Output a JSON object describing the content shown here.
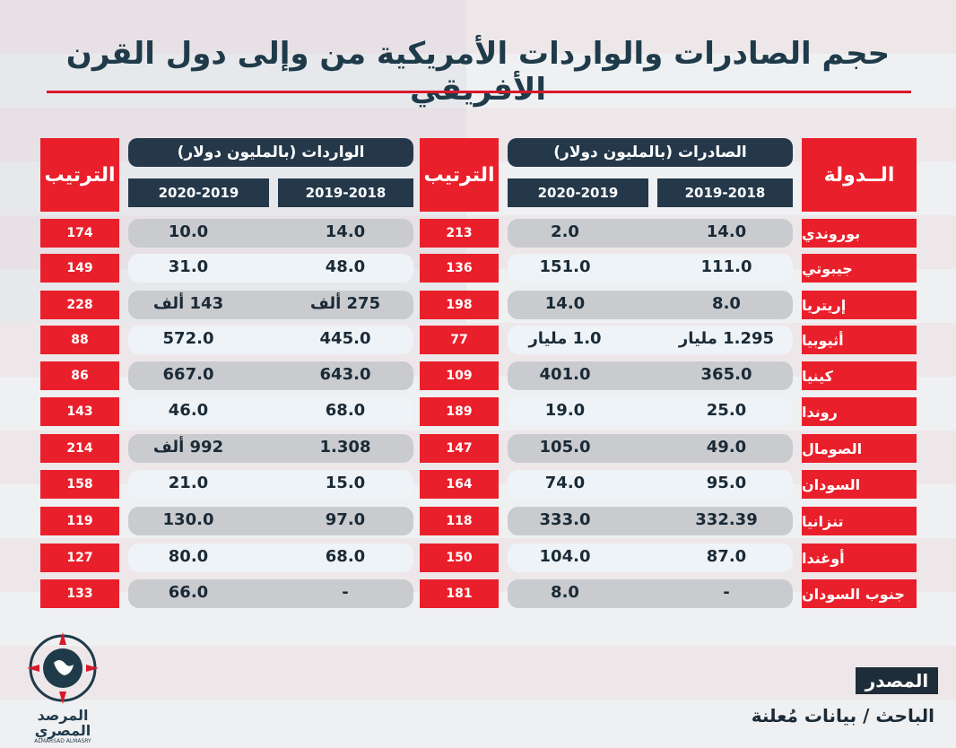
{
  "title": "حجم الصادرات والواردات الأمريكية من وإلى دول القرن الأفريقي",
  "headers": {
    "country": "الــدولة",
    "rank": "الترتيب",
    "exports": "الصادرات (بالمليون دولار)",
    "imports": "الواردات (بالمليون دولار)",
    "y1": "2019-2018",
    "y2": "2020-2019"
  },
  "rows": [
    {
      "country": "بوروندي",
      "exp1": "14.0",
      "exp2": "2.0",
      "exp_rank": "213",
      "imp1": "14.0",
      "imp2": "10.0",
      "imp_rank": "174"
    },
    {
      "country": "جيبوتي",
      "exp1": "111.0",
      "exp2": "151.0",
      "exp_rank": "136",
      "imp1": "48.0",
      "imp2": "31.0",
      "imp_rank": "149"
    },
    {
      "country": "إريتريا",
      "exp1": "8.0",
      "exp2": "14.0",
      "exp_rank": "198",
      "imp1": "275 ألف",
      "imp2": "143 ألف",
      "imp_rank": "228"
    },
    {
      "country": "أثيوبيا",
      "exp1": "1.295 مليار",
      "exp2": "1.0 مليار",
      "exp_rank": "77",
      "imp1": "445.0",
      "imp2": "572.0",
      "imp_rank": "88"
    },
    {
      "country": "كينيا",
      "exp1": "365.0",
      "exp2": "401.0",
      "exp_rank": "109",
      "imp1": "643.0",
      "imp2": "667.0",
      "imp_rank": "86"
    },
    {
      "country": "روندا",
      "exp1": "25.0",
      "exp2": "19.0",
      "exp_rank": "189",
      "imp1": "68.0",
      "imp2": "46.0",
      "imp_rank": "143"
    },
    {
      "country": "الصومال",
      "exp1": "49.0",
      "exp2": "105.0",
      "exp_rank": "147",
      "imp1": "1.308",
      "imp2": "992 ألف",
      "imp_rank": "214"
    },
    {
      "country": "السودان",
      "exp1": "95.0",
      "exp2": "74.0",
      "exp_rank": "164",
      "imp1": "15.0",
      "imp2": "21.0",
      "imp_rank": "158"
    },
    {
      "country": "تنزانيا",
      "exp1": "332.39",
      "exp2": "333.0",
      "exp_rank": "118",
      "imp1": "97.0",
      "imp2": "130.0",
      "imp_rank": "119"
    },
    {
      "country": "أوغندا",
      "exp1": "87.0",
      "exp2": "104.0",
      "exp_rank": "150",
      "imp1": "68.0",
      "imp2": "80.0",
      "imp_rank": "127"
    },
    {
      "country": "جنوب السودان",
      "exp1": "-",
      "exp2": "8.0",
      "exp_rank": "181",
      "imp1": "-",
      "imp2": "66.0",
      "imp_rank": "133"
    }
  ],
  "source": {
    "label": "المصدر",
    "text": "الباحث / بيانات مُعلنة"
  },
  "logo": {
    "name_line1": "المرصد",
    "name_line2": "المصري",
    "latin": "ALMARSAD ALMASRY"
  },
  "colors": {
    "red": "#e9202b",
    "navy": "#24384a",
    "title": "#1f3b4a"
  }
}
